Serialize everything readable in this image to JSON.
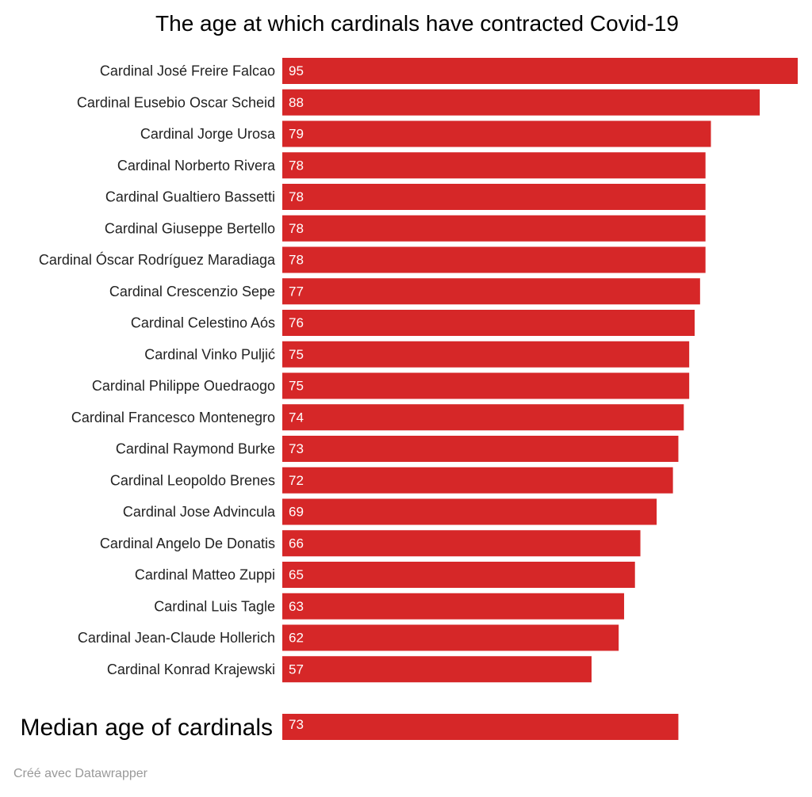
{
  "chart_data": {
    "type": "bar",
    "orientation": "horizontal",
    "title": "The age at which cardinals have contracted Covid-19",
    "categories": [
      "Cardinal José Freire Falcao",
      "Cardinal Eusebio Oscar Scheid",
      "Cardinal Jorge Urosa",
      "Cardinal Norberto Rivera",
      "Cardinal Gualtiero Bassetti",
      "Cardinal Giuseppe Bertello",
      "Cardinal Óscar Rodríguez Maradiaga",
      "Cardinal Crescenzio Sepe",
      "Cardinal Celestino Aós",
      "Cardinal Vinko Puljić",
      "Cardinal Philippe Ouedraogo",
      "Cardinal Francesco Montenegro",
      "Cardinal Raymond Burke",
      "Cardinal Leopoldo Brenes",
      "Cardinal Jose Advincula",
      "Cardinal Angelo De Donatis",
      "Cardinal Matteo Zuppi",
      "Cardinal Luis Tagle",
      "Cardinal Jean-Claude Hollerich",
      "Cardinal Konrad Krajewski"
    ],
    "values": [
      95,
      88,
      79,
      78,
      78,
      78,
      78,
      77,
      76,
      75,
      75,
      74,
      73,
      72,
      69,
      66,
      65,
      63,
      62,
      57
    ],
    "median": {
      "label": "Median age of cardinals",
      "value": 73
    },
    "xlim": [
      0,
      95
    ],
    "bar_color": "#d62728",
    "grid": false,
    "legend": "none"
  },
  "footer": {
    "credit": "Créé avec Datawrapper"
  }
}
